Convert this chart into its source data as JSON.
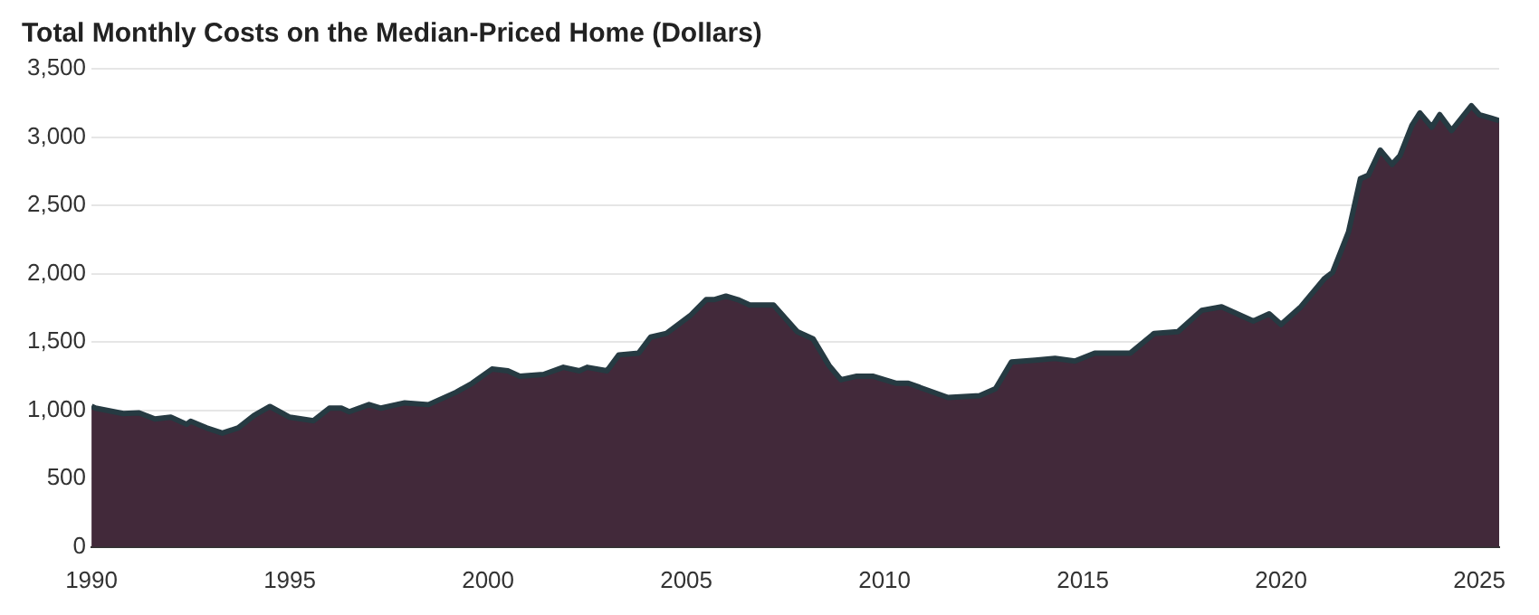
{
  "chart_data": {
    "type": "area",
    "title": "Total Monthly Costs on the Median-Priced Home (Dollars)",
    "x": [
      1990,
      1990.1,
      1990.8,
      1991.2,
      1991.6,
      1992,
      1992.4,
      1992.5,
      1992.9,
      1993.3,
      1993.7,
      1994.1,
      1994.5,
      1995,
      1995.6,
      1996,
      1996.3,
      1996.5,
      1997,
      1997.3,
      1997.9,
      1998.5,
      1999.2,
      1999.6,
      2000.1,
      2000.5,
      2000.8,
      2001.4,
      2001.9,
      2002.3,
      2002.5,
      2003,
      2003.3,
      2003.8,
      2004.1,
      2004.5,
      2005.1,
      2005.5,
      2005.7,
      2006,
      2006.3,
      2006.6,
      2007.2,
      2007.8,
      2008.2,
      2008.6,
      2008.9,
      2009.3,
      2009.7,
      2010.3,
      2010.6,
      2011.6,
      2012.4,
      2012.8,
      2013.2,
      2013.8,
      2014.3,
      2014.8,
      2015.3,
      2016.2,
      2016.8,
      2017.4,
      2018,
      2018.5,
      2019.3,
      2019.7,
      2020,
      2020.5,
      2021.1,
      2021.3,
      2021.7,
      2022,
      2022.2,
      2022.5,
      2022.8,
      2023,
      2023.3,
      2023.5,
      2023.8,
      2024,
      2024.3,
      2024.8,
      2025,
      2025.3,
      2025.5
    ],
    "series": [
      {
        "color": "#42293a",
        "values": [
          1030,
          1016,
          977,
          982,
          937,
          950,
          898,
          920,
          872,
          833,
          872,
          963,
          1028,
          950,
          924,
          1016,
          1016,
          990,
          1042,
          1016,
          1055,
          1042,
          1133,
          1198,
          1302,
          1289,
          1250,
          1263,
          1315,
          1289,
          1315,
          1289,
          1406,
          1419,
          1536,
          1563,
          1693,
          1810,
          1810,
          1836,
          1810,
          1771,
          1771,
          1576,
          1523,
          1328,
          1224,
          1250,
          1250,
          1198,
          1198,
          1094,
          1107,
          1159,
          1354,
          1367,
          1380,
          1360,
          1419,
          1419,
          1563,
          1576,
          1732,
          1758,
          1654,
          1706,
          1628,
          1758,
          1966,
          2010,
          2305,
          2695,
          2720,
          2904,
          2800,
          2865,
          3086,
          3177,
          3073,
          3164,
          3047,
          3229,
          3164,
          3138,
          3120
        ]
      }
    ],
    "xlim": [
      1990,
      2025.5
    ],
    "xticks": [
      1990,
      1995,
      2000,
      2005,
      2010,
      2015,
      2020,
      2025
    ],
    "ylim": [
      0,
      3500
    ],
    "yticks": [
      {
        "value": 0,
        "label": "0"
      },
      {
        "value": 500,
        "label": "500"
      },
      {
        "value": 1000,
        "label": "1,000"
      },
      {
        "value": 1500,
        "label": "1,500"
      },
      {
        "value": 2000,
        "label": "2,000"
      },
      {
        "value": 2500,
        "label": "2,500"
      },
      {
        "value": 3000,
        "label": "3,000"
      },
      {
        "value": 3500,
        "label": "3,500"
      }
    ],
    "grid": "y",
    "legend": false,
    "marker": "none",
    "line_style": "solid"
  }
}
